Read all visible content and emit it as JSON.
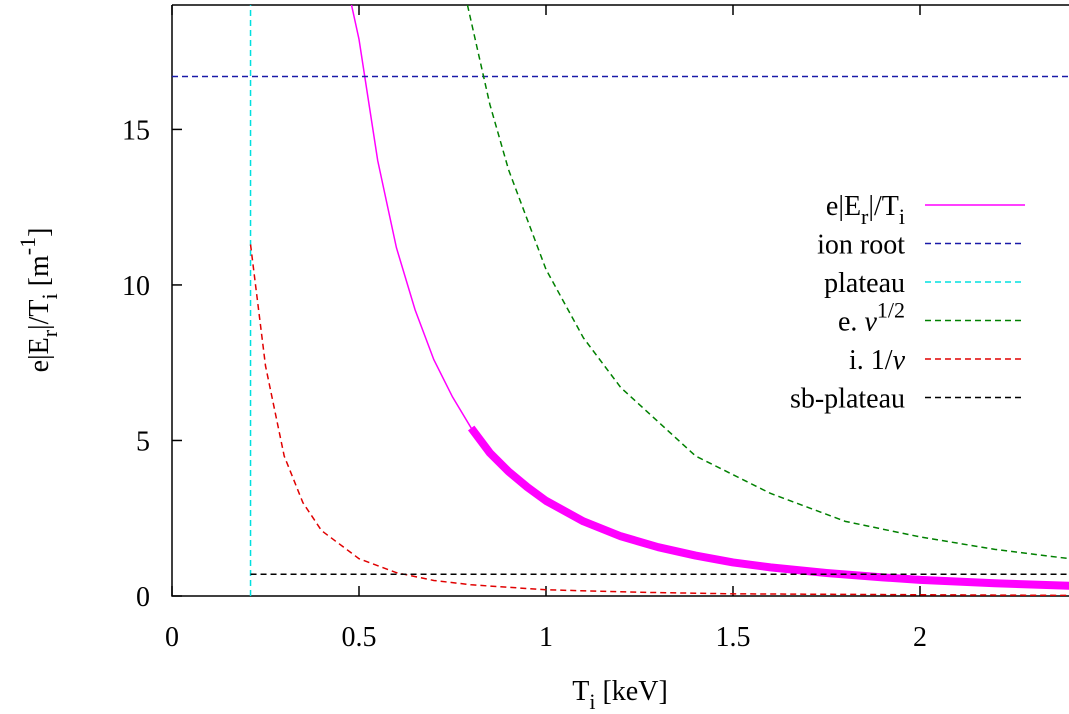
{
  "chart_data": {
    "type": "line",
    "xlabel": [
      {
        "t": "T"
      },
      {
        "sub": "i"
      },
      {
        "t": " [keV]"
      }
    ],
    "ylabel": [
      {
        "t": "e|E"
      },
      {
        "sub": "r"
      },
      {
        "t": "|/T"
      },
      {
        "sub": "i"
      },
      {
        "t": " [m"
      },
      {
        "sup": "-1"
      },
      {
        "t": "]"
      }
    ],
    "xlim": [
      0,
      2.4
    ],
    "ylim": [
      0,
      19
    ],
    "xticks": [
      0,
      0.5,
      1,
      1.5,
      2
    ],
    "yticks": [
      0,
      5,
      10,
      15
    ],
    "legend": "right",
    "series": [
      {
        "name": [
          {
            "t": "e|E"
          },
          {
            "sub": "r"
          },
          {
            "t": "|/T"
          },
          {
            "sub": "i"
          }
        ],
        "color": "#ff00ff",
        "dashed": false,
        "thick_from_x": 0.8,
        "x": [
          0.48,
          0.5,
          0.55,
          0.6,
          0.65,
          0.7,
          0.75,
          0.8,
          0.85,
          0.9,
          0.95,
          1.0,
          1.1,
          1.2,
          1.3,
          1.4,
          1.5,
          1.6,
          1.75,
          1.9,
          2.0,
          2.2,
          2.4
        ],
        "values": [
          19,
          17.9,
          14.0,
          11.2,
          9.2,
          7.6,
          6.4,
          5.4,
          4.6,
          4.0,
          3.5,
          3.06,
          2.4,
          1.92,
          1.57,
          1.3,
          1.08,
          0.92,
          0.74,
          0.6,
          0.52,
          0.41,
          0.33
        ]
      },
      {
        "name": [
          {
            "t": "ion root"
          }
        ],
        "color": "#1a1aa8",
        "dashed": true,
        "x": [
          0,
          2.4
        ],
        "values": [
          16.7,
          16.7
        ]
      },
      {
        "name": [
          {
            "t": "plateau"
          }
        ],
        "color": "#00e0e0",
        "dashed": true,
        "x": [
          0.21,
          0.21
        ],
        "values": [
          0,
          19
        ]
      },
      {
        "name": [
          {
            "t": "e. "
          },
          {
            "it": "ν"
          },
          {
            "sup": "1/2"
          }
        ],
        "color": "#008000",
        "dashed": true,
        "x": [
          0.79,
          0.85,
          0.9,
          1.0,
          1.1,
          1.2,
          1.4,
          1.6,
          1.8,
          2.0,
          2.2,
          2.4
        ],
        "values": [
          19,
          15.8,
          13.7,
          10.5,
          8.3,
          6.7,
          4.5,
          3.3,
          2.4,
          1.9,
          1.5,
          1.2
        ]
      },
      {
        "name": [
          {
            "t": "i. 1/"
          },
          {
            "it": "ν"
          }
        ],
        "color": "#e00000",
        "dashed": true,
        "x": [
          0.21,
          0.25,
          0.3,
          0.35,
          0.4,
          0.5,
          0.6,
          0.7,
          0.8,
          1.0,
          1.25,
          1.5,
          2.0,
          2.4
        ],
        "values": [
          11.3,
          7.4,
          4.5,
          3.0,
          2.1,
          1.2,
          0.75,
          0.5,
          0.36,
          0.2,
          0.12,
          0.07,
          0.04,
          0.02
        ]
      },
      {
        "name": [
          {
            "t": "sb-plateau"
          }
        ],
        "color": "#000000",
        "dashed": true,
        "x": [
          0.21,
          2.4
        ],
        "values": [
          0.7,
          0.7
        ]
      }
    ]
  }
}
